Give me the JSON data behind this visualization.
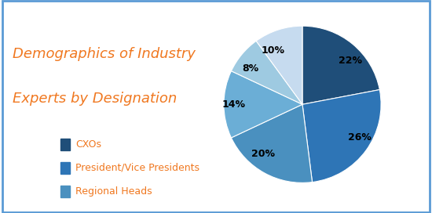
{
  "title_line1": "Demographics of Industry",
  "title_line2": "Experts by Designation",
  "title_color": "#F07820",
  "slices": [
    22,
    26,
    20,
    14,
    8,
    10
  ],
  "labels": [
    "22%",
    "26%",
    "20%",
    "14%",
    "8%",
    "10%"
  ],
  "colors": [
    "#1F4E79",
    "#2E75B6",
    "#4A90BF",
    "#6BAED6",
    "#9ECAE1",
    "#C6DBEF"
  ],
  "legend_labels": [
    "CXOs",
    "President/Vice Presidents",
    "Regional Heads"
  ],
  "legend_colors": [
    "#1F4E79",
    "#2E75B6",
    "#4A90BF"
  ],
  "background_color": "#FFFFFF",
  "border_color": "#5B9BD5",
  "label_fontsize": 9,
  "title_fontsize": 13,
  "legend_fontsize": 9
}
